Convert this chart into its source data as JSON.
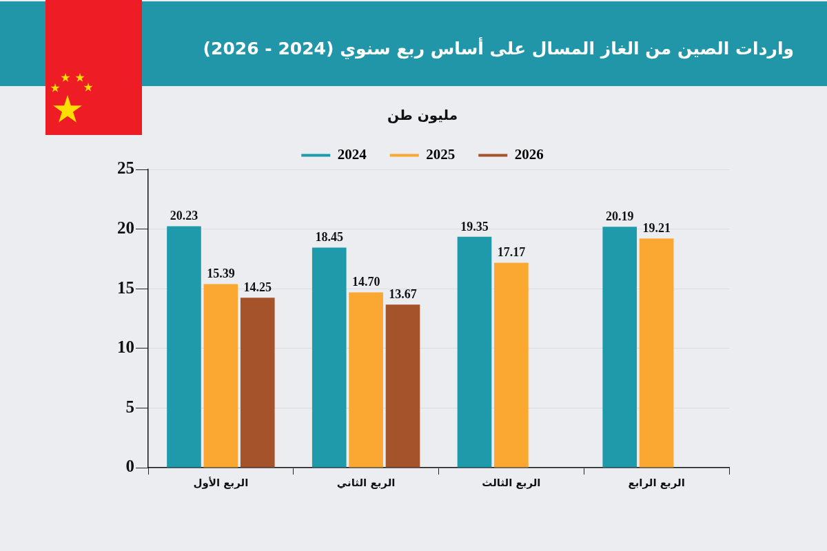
{
  "chart_data": {
    "type": "bar",
    "title": "واردات الصين من الغاز المسال على أساس ربع سنوي (2024 - 2026)",
    "subtitle": "مليون طن",
    "categories": [
      "الربع الأول",
      "الربع الثاني",
      "الربع الثالث",
      "الربع الرابع"
    ],
    "series": [
      {
        "name": "2024",
        "color": "#1f9aab",
        "values": [
          20.23,
          18.45,
          19.35,
          20.19
        ],
        "value_labels": [
          "20.23",
          "18.45",
          "19.35",
          "20.19"
        ]
      },
      {
        "name": "2025",
        "color": "#faa831",
        "values": [
          15.39,
          14.7,
          17.17,
          19.21
        ],
        "value_labels": [
          "15.39",
          "14.70",
          "17.17",
          "19.21"
        ]
      },
      {
        "name": "2026",
        "color": "#a5532a",
        "values": [
          14.25,
          13.67,
          null,
          null
        ],
        "value_labels": [
          "14.25",
          "13.67",
          null,
          null
        ]
      }
    ],
    "ylim": [
      0,
      25
    ],
    "yticks": [
      0,
      5,
      10,
      15,
      20,
      25
    ],
    "grid": "y",
    "legend": "top"
  }
}
